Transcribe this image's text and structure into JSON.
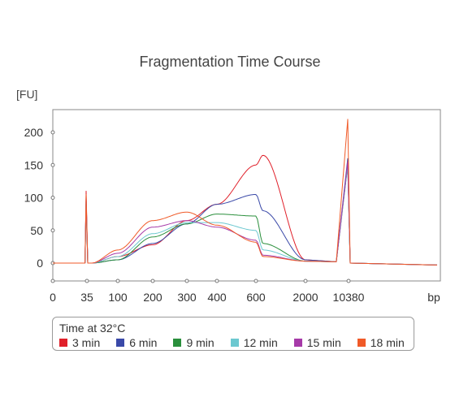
{
  "chart_data": {
    "type": "line",
    "title": "Fragmentation Time Course",
    "ylabel": "[FU]",
    "xlabel": "bp",
    "ylim": [
      -30,
      230
    ],
    "yticks": [
      0,
      50,
      100,
      150,
      200
    ],
    "xticks": [
      "0",
      "35",
      "100",
      "200",
      "300",
      "400",
      "600",
      "2000",
      "10380"
    ],
    "x_scale": "ladder (non-linear bp)",
    "legend": {
      "title": "Time at 32°C",
      "position": "bottom"
    },
    "series": [
      {
        "name": "3 min",
        "color": "#e0202a",
        "x": [
          0,
          35,
          100,
          200,
          300,
          400,
          600,
          800,
          2000,
          10380
        ],
        "y": [
          0,
          110,
          10,
          28,
          65,
          90,
          150,
          165,
          5,
          155
        ]
      },
      {
        "name": "6 min",
        "color": "#3a49a8",
        "x": [
          0,
          35,
          100,
          200,
          300,
          400,
          600,
          800,
          2000,
          10380
        ],
        "y": [
          0,
          100,
          5,
          30,
          60,
          90,
          105,
          80,
          5,
          160
        ]
      },
      {
        "name": "9 min",
        "color": "#2a8f3c",
        "x": [
          0,
          35,
          100,
          200,
          300,
          400,
          600,
          800,
          2000,
          10380
        ],
        "y": [
          0,
          90,
          5,
          40,
          60,
          75,
          72,
          30,
          3,
          150
        ]
      },
      {
        "name": "12 min",
        "color": "#6cc8d0",
        "x": [
          0,
          35,
          100,
          200,
          300,
          400,
          600,
          800,
          2000,
          10380
        ],
        "y": [
          0,
          95,
          10,
          45,
          62,
          62,
          50,
          20,
          3,
          150
        ]
      },
      {
        "name": "15 min",
        "color": "#a63aa8",
        "x": [
          0,
          35,
          100,
          200,
          300,
          400,
          600,
          800,
          2000,
          10380
        ],
        "y": [
          0,
          98,
          15,
          55,
          65,
          55,
          35,
          12,
          3,
          155
        ]
      },
      {
        "name": "18 min",
        "color": "#f05a28",
        "x": [
          0,
          35,
          100,
          200,
          300,
          400,
          600,
          800,
          2000,
          10380
        ],
        "y": [
          0,
          105,
          20,
          65,
          78,
          58,
          32,
          10,
          3,
          220
        ]
      }
    ]
  }
}
